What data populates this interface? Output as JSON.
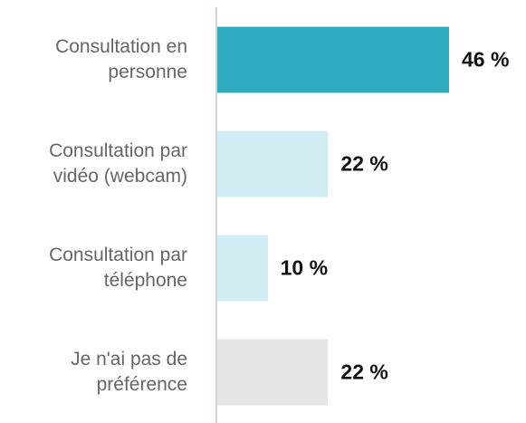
{
  "chart_data": {
    "type": "bar",
    "orientation": "horizontal",
    "categories": [
      "Consultation en\npersonne",
      "Consultation par\nvidéo (webcam)",
      "Consultation par\ntéléphone",
      "Je n'ai pas de\npréférence"
    ],
    "values": [
      46,
      22,
      10,
      22
    ],
    "value_labels": [
      "46 %",
      "22 %",
      "10 %",
      "22 %"
    ],
    "colors": [
      "#2eacbf",
      "#d0edf3",
      "#d0edf3",
      "#e6e6e6"
    ]
  }
}
